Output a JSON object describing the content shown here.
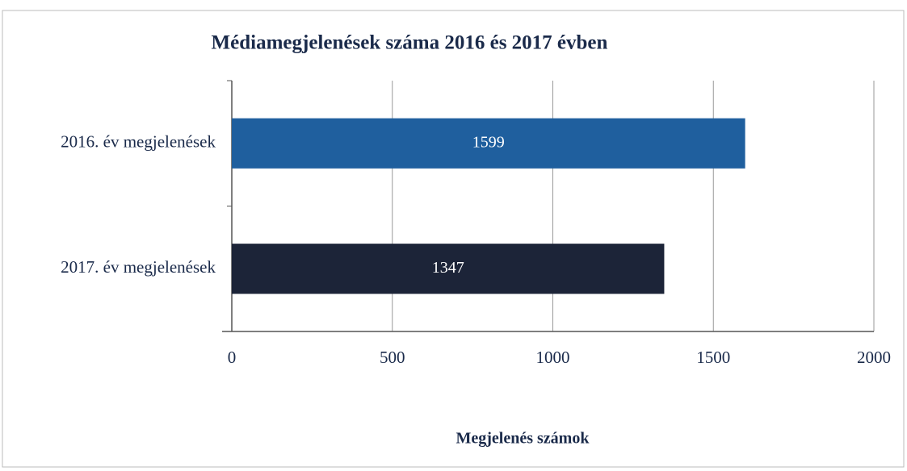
{
  "chart_data": {
    "type": "bar",
    "orientation": "horizontal",
    "title": "Médiamegjelenések száma 2016 és 2017 évben",
    "x_label": "Megjelenés számok",
    "categories": [
      "2016. év megjelenések",
      "2017. év megjelenések"
    ],
    "values": [
      1599,
      1347
    ],
    "colors": [
      "#1f5f9e",
      "#1c2438"
    ],
    "xlim": [
      0,
      2000
    ],
    "xticks": [
      0,
      500,
      1000,
      1500,
      2000
    ],
    "grid": true
  }
}
